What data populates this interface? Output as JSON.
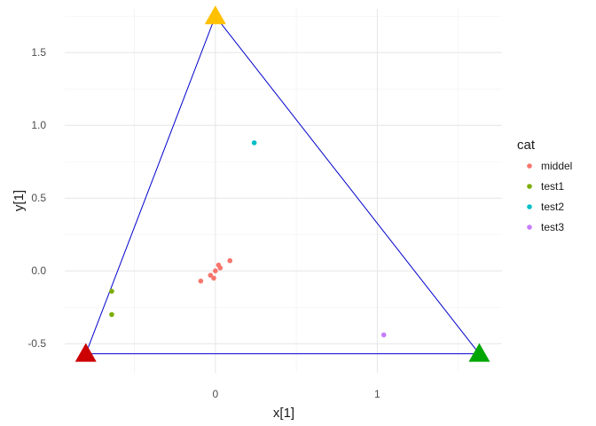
{
  "chart_data": {
    "type": "scatter",
    "xlabel": "x[1]",
    "ylabel": "y[1]",
    "xlim": [
      -0.93,
      1.77
    ],
    "ylim": [
      -0.7,
      1.8
    ],
    "x_ticks": [
      0,
      1
    ],
    "y_ticks": [
      -0.5,
      0.0,
      0.5,
      1.0,
      1.5
    ],
    "y_tick_labels": [
      "-0.5",
      "0.0",
      "0.5",
      "1.0",
      "1.5"
    ],
    "x_tick_labels": [
      "0",
      "1"
    ],
    "grid": true,
    "legend": {
      "title": "cat",
      "placement": "right"
    },
    "triangle": {
      "color": "#0000cc",
      "vertices": [
        {
          "x": -0.8,
          "y": -0.57,
          "color": "#cc0000"
        },
        {
          "x": 0.0,
          "y": 1.75,
          "color": "#ffc000"
        },
        {
          "x": 1.63,
          "y": -0.57,
          "color": "#00a600"
        }
      ]
    },
    "series": [
      {
        "name": "middel",
        "color": "#f8766d",
        "points": [
          {
            "x": -0.09,
            "y": -0.07
          },
          {
            "x": -0.03,
            "y": -0.03
          },
          {
            "x": -0.01,
            "y": -0.05
          },
          {
            "x": 0.0,
            "y": 0.0
          },
          {
            "x": 0.02,
            "y": 0.04
          },
          {
            "x": 0.03,
            "y": 0.02
          },
          {
            "x": 0.09,
            "y": 0.07
          }
        ]
      },
      {
        "name": "test1",
        "color": "#7cae00",
        "points": [
          {
            "x": -0.64,
            "y": -0.14
          },
          {
            "x": -0.64,
            "y": -0.3
          }
        ]
      },
      {
        "name": "test2",
        "color": "#00bfc4",
        "points": [
          {
            "x": 0.24,
            "y": 0.88
          }
        ]
      },
      {
        "name": "test3",
        "color": "#c77cff",
        "points": [
          {
            "x": 1.04,
            "y": -0.44
          }
        ]
      }
    ]
  }
}
